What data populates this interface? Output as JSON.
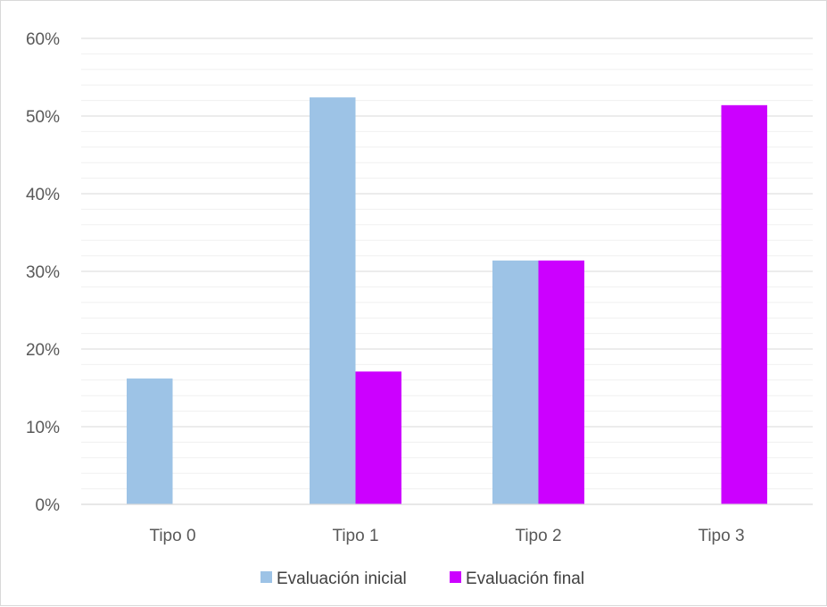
{
  "chart_data": {
    "type": "bar",
    "title": "",
    "xlabel": "",
    "ylabel": "",
    "categories": [
      "Tipo 0",
      "Tipo 1",
      "Tipo 2",
      "Tipo 3"
    ],
    "series": [
      {
        "name": "Evaluación inicial",
        "color": "#9DC3E6",
        "values": [
          16.2,
          52.4,
          31.4,
          0
        ]
      },
      {
        "name": "Evaluación final",
        "color": "#CC00FF",
        "values": [
          0,
          17.1,
          31.4,
          51.4
        ]
      }
    ],
    "ylim": [
      0,
      60
    ],
    "yticks": [
      0,
      10,
      20,
      30,
      40,
      50,
      60
    ],
    "ytick_labels": [
      "0%",
      "10%",
      "20%",
      "30%",
      "40%",
      "50%",
      "60%"
    ],
    "grid": true,
    "minor_grid": true,
    "legend_position": "bottom"
  }
}
